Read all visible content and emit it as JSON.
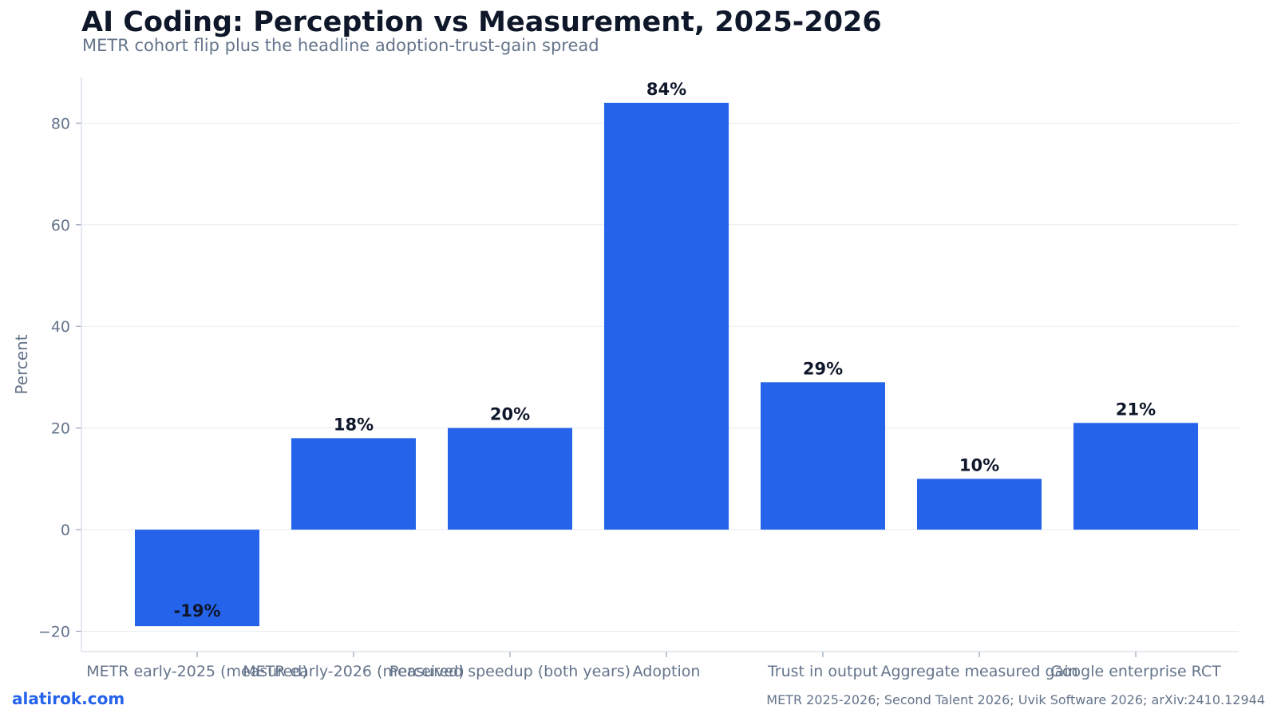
{
  "header": {
    "title": "AI Coding: Perception vs Measurement, 2025-2026",
    "subtitle": "METR cohort flip plus the headline adoption-trust-gain spread"
  },
  "footer": {
    "brand": "alatirok.com",
    "source": "METR 2025-2026; Second Talent 2026; Uvik Software 2026; arXiv:2410.12944"
  },
  "chart_data": {
    "type": "bar",
    "categories": [
      "METR early-2025 (measured)",
      "METR early-2026 (measured)",
      "Perceived speedup (both years)",
      "Adoption",
      "Trust in output",
      "Aggregate measured gain",
      "Google enterprise RCT"
    ],
    "values": [
      -19,
      18,
      20,
      84,
      29,
      10,
      21
    ],
    "value_labels": [
      "-19%",
      "18%",
      "20%",
      "84%",
      "29%",
      "10%",
      "21%"
    ],
    "ylabel": "Percent",
    "ylim": [
      -24,
      89
    ],
    "yticks": [
      -20,
      0,
      20,
      40,
      60,
      80
    ],
    "ytick_labels": [
      "−20",
      "0",
      "20",
      "40",
      "60",
      "80"
    ],
    "grid": "horizontal",
    "bar_color": "#2563eb"
  }
}
